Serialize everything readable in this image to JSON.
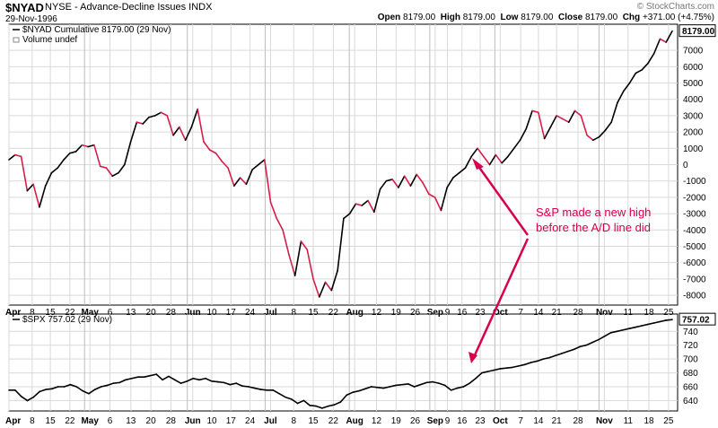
{
  "header": {
    "symbol": "$NYAD",
    "description": "NYSE - Advance-Decline Issues INDX",
    "date": "29-Nov-1996",
    "credit": "© StockCharts.com",
    "quote": {
      "open_label": "Open",
      "open": "8179.00",
      "high_label": "High",
      "high": "8179.00",
      "low_label": "Low",
      "low": "8179.00",
      "close_label": "Close",
      "close": "8179.00",
      "chg_label": "Chg",
      "chg": "+371.00 (+4.75%)"
    }
  },
  "colors": {
    "up": "#000000",
    "down": "#d41f4a",
    "annotation": "#d6004f",
    "grid": "#d9d9d9"
  },
  "chart_data": [
    {
      "type": "line",
      "legend": "$NYAD Cumulative 8179.00 (29 Nov)",
      "sublegend": "Volume undef",
      "last_value_label": "8179.00",
      "ylim": [
        -8600,
        8600
      ],
      "y_ticks": [
        "7000",
        "6000",
        "5000",
        "4000",
        "3000",
        "2000",
        "1000",
        "0",
        "-1000",
        "-2000",
        "-3000",
        "-4000",
        "-5000",
        "-6000",
        "-7000",
        "-8000"
      ],
      "x_labels": [
        "Apr",
        "8",
        "15",
        "22",
        "May",
        "6",
        "13",
        "20",
        "28",
        "Jun",
        "10",
        "17",
        "24",
        "Jul",
        "8",
        "15",
        "22",
        "Aug",
        "12",
        "19",
        "26",
        "Sep",
        "9",
        "16",
        "23",
        "Oct",
        "7",
        "14",
        "21",
        "28",
        "Nov",
        "11",
        "18",
        "25"
      ],
      "values": [
        300,
        600,
        500,
        -1600,
        -1200,
        -2600,
        -1300,
        -500,
        -200,
        300,
        700,
        800,
        1200,
        1100,
        1200,
        -100,
        -200,
        -700,
        -500,
        0,
        1400,
        2600,
        2500,
        2900,
        3000,
        3200,
        3000,
        1800,
        2300,
        1500,
        2300,
        3400,
        1400,
        900,
        700,
        200,
        -200,
        -1300,
        -800,
        -1200,
        -300,
        0,
        300,
        -2300,
        -3300,
        -4000,
        -5500,
        -6800,
        -4700,
        -5200,
        -7000,
        -8100,
        -7200,
        -7700,
        -6500,
        -3300,
        -3000,
        -2400,
        -2500,
        -2200,
        -2900,
        -1500,
        -1000,
        -900,
        -1400,
        -700,
        -1300,
        -600,
        -1100,
        -1800,
        -2000,
        -2800,
        -1400,
        -800,
        -500,
        -200,
        500,
        1000,
        500,
        0,
        600,
        100,
        500,
        1000,
        1500,
        2200,
        3300,
        3200,
        1600,
        2300,
        3000,
        2800,
        2600,
        3300,
        3000,
        1800,
        1500,
        1700,
        2100,
        2600,
        3800,
        4500,
        5000,
        5600,
        5800,
        6200,
        6800,
        7700,
        7500,
        8179
      ],
      "annotation": {
        "line1": "S&P made a new high",
        "line2": "before the A/D line did"
      }
    },
    {
      "type": "line",
      "legend": "$SPX 757.02 (29 Nov)",
      "last_value_label": "757.02",
      "ylim": [
        625,
        765
      ],
      "y_ticks": [
        "740",
        "720",
        "700",
        "680",
        "660",
        "640"
      ],
      "x_labels": [
        "Apr",
        "8",
        "15",
        "22",
        "May",
        "6",
        "13",
        "20",
        "28",
        "Jun",
        "10",
        "17",
        "24",
        "Jul",
        "8",
        "15",
        "22",
        "Aug",
        "12",
        "19",
        "26",
        "Sep",
        "9",
        "16",
        "23",
        "Oct",
        "7",
        "14",
        "21",
        "28",
        "Nov",
        "11",
        "18",
        "25"
      ],
      "values": [
        655,
        655,
        646,
        640,
        645,
        653,
        656,
        657,
        660,
        660,
        663,
        660,
        654,
        650,
        656,
        660,
        662,
        665,
        666,
        670,
        672,
        674,
        674,
        676,
        678,
        670,
        675,
        670,
        665,
        668,
        672,
        670,
        672,
        668,
        667,
        666,
        663,
        665,
        661,
        660,
        658,
        656,
        655,
        655,
        650,
        645,
        642,
        636,
        640,
        633,
        632,
        629,
        632,
        634,
        638,
        648,
        652,
        654,
        657,
        660,
        659,
        658,
        660,
        662,
        663,
        664,
        660,
        663,
        666,
        667,
        665,
        662,
        655,
        658,
        660,
        665,
        672,
        680,
        682,
        684,
        686,
        687,
        688,
        690,
        692,
        695,
        697,
        700,
        702,
        705,
        708,
        711,
        714,
        718,
        720,
        724,
        728,
        733,
        738,
        740,
        742,
        744,
        746,
        748,
        750,
        752,
        754,
        756,
        757.02
      ]
    }
  ]
}
